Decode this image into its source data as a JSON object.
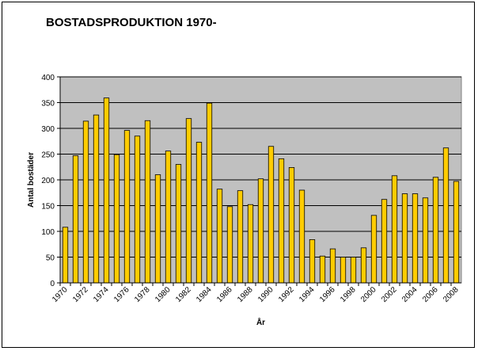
{
  "chart_data": {
    "type": "bar",
    "title": "BOSTADSPRODUKTION 1970-",
    "xlabel": "År",
    "ylabel": "Antal bostäder",
    "ylim": [
      0,
      400
    ],
    "yticks": [
      0,
      50,
      100,
      150,
      200,
      250,
      300,
      350,
      400
    ],
    "grid": true,
    "bar_color": "#FFCC00",
    "plot_bg": "#C0C0C0",
    "categories": [
      "1970",
      "1971",
      "1972",
      "1973",
      "1974",
      "1975",
      "1976",
      "1977",
      "1978",
      "1979",
      "1980",
      "1981",
      "1982",
      "1983",
      "1984",
      "1985",
      "1986",
      "1987",
      "1988",
      "1989",
      "1990",
      "1991",
      "1992",
      "1993",
      "1994",
      "1995",
      "1996",
      "1997",
      "1998",
      "1999",
      "2000",
      "2001",
      "2002",
      "2003",
      "2004",
      "2005",
      "2006",
      "2007",
      "2008"
    ],
    "tick_labels": [
      "1970",
      "",
      "1972",
      "",
      "1974",
      "",
      "1976",
      "",
      "1978",
      "",
      "1980",
      "",
      "1982",
      "",
      "1984",
      "",
      "1986",
      "",
      "1988",
      "",
      "1990",
      "",
      "1992",
      "",
      "1994",
      "",
      "1996",
      "",
      "1998",
      "",
      "2000",
      "",
      "2002",
      "",
      "2004",
      "",
      "2006",
      "",
      "2008"
    ],
    "values": [
      108,
      247,
      314,
      326,
      359,
      249,
      296,
      285,
      315,
      210,
      256,
      230,
      319,
      273,
      349,
      182,
      148,
      179,
      152,
      202,
      265,
      241,
      224,
      180,
      84,
      52,
      66,
      50,
      50,
      68,
      131,
      162,
      208,
      173,
      173,
      165,
      205,
      262,
      197
    ]
  }
}
